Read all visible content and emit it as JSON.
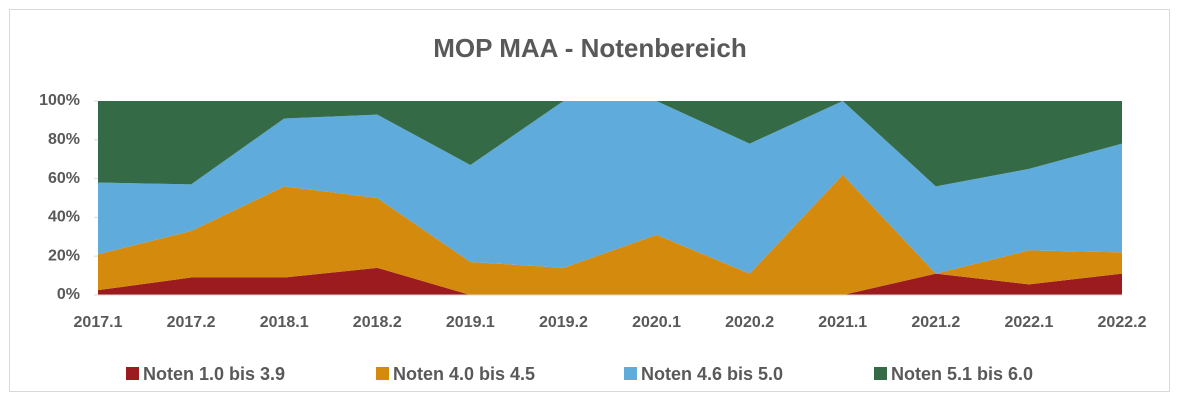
{
  "chart_data": {
    "type": "stacked_area",
    "title": "MOP MAA - Notenbereich",
    "categories": [
      "2017.1",
      "2017.2",
      "2018.1",
      "2018.2",
      "2019.1",
      "2019.2",
      "2020.1",
      "2020.2",
      "2021.1",
      "2021.2",
      "2022.1",
      "2022.2"
    ],
    "series": [
      {
        "name": "Noten 1.0 bis 3.9",
        "color": "#9b1b1e",
        "values": [
          2.5,
          9,
          9,
          14,
          0,
          0,
          0,
          0,
          0,
          11,
          5.5,
          11
        ]
      },
      {
        "name": "Noten 4.0 bis 4.5",
        "color": "#d48a0c",
        "values": [
          18.5,
          24,
          47,
          36,
          17,
          14,
          31,
          11,
          62,
          0,
          17.5,
          11
        ]
      },
      {
        "name": "Noten 4.6 bis 5.0",
        "color": "#5eabdc",
        "values": [
          37,
          24,
          35,
          43,
          50,
          86,
          69,
          67,
          38,
          45,
          42,
          56
        ]
      },
      {
        "name": "Noten 5.1 bis 6.0",
        "color": "#346b46",
        "values": [
          42,
          43,
          9,
          7,
          33,
          0,
          0,
          22,
          0,
          44,
          35,
          22
        ]
      }
    ],
    "ylim": [
      0,
      100
    ],
    "yticks": [
      {
        "value": 0,
        "label": "0%"
      },
      {
        "value": 20,
        "label": "20%"
      },
      {
        "value": 40,
        "label": "40%"
      },
      {
        "value": 60,
        "label": "60%"
      },
      {
        "value": 80,
        "label": "80%"
      },
      {
        "value": 100,
        "label": "100%"
      }
    ],
    "legend": "bottom"
  }
}
